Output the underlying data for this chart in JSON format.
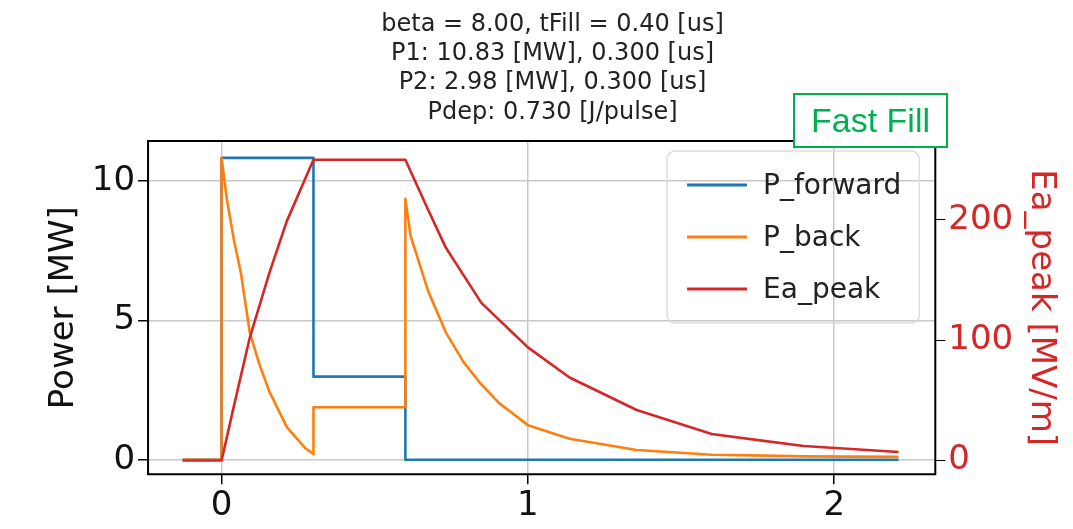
{
  "chart_data": {
    "type": "line",
    "title": "beta = 8.00, tFill = 0.40 [us]\nP1: 10.83 [MW], 0.300 [us]\nP2: 2.98 [MW], 0.300 [us]\nPdep: 0.730 [J/pulse]",
    "ylabel": "Power [MW]",
    "y2label": "Ea_peak [MV/m]",
    "annotations": [
      "Fast Fill"
    ],
    "xlim": [
      -0.24,
      2.33
    ],
    "xticks": [
      0,
      1,
      2
    ],
    "ylim": [
      -0.52,
      11.43
    ],
    "yticks": [
      0,
      5,
      10
    ],
    "y2lim": [
      -11.4,
      265.5
    ],
    "y2ticks": [
      0,
      100,
      200
    ],
    "grid": true,
    "legend": "top right",
    "marker": "none",
    "line_style": "solid",
    "series": [
      {
        "name": "P_forward",
        "color": "#1f77b4",
        "x": [
          -0.127,
          0,
          0,
          0.3,
          0.3,
          0.6,
          0.6,
          2.21
        ],
        "values": [
          0,
          0,
          10.83,
          10.83,
          2.98,
          2.98,
          0,
          0
        ]
      },
      {
        "name": "P_back",
        "color": "#ff7f0e",
        "x": [
          -0.127,
          0,
          0,
          0.017,
          0.04,
          0.063,
          0.092,
          0.121,
          0.156,
          0.213,
          0.271,
          0.3,
          0.3,
          0.6,
          0.6,
          0.617,
          0.675,
          0.732,
          0.79,
          0.848,
          0.905,
          1.0,
          1.136,
          1.355,
          1.6,
          1.9,
          2.21
        ],
        "values": [
          0,
          0,
          10.83,
          9.36,
          7.9,
          6.7,
          4.57,
          3.5,
          2.44,
          1.17,
          0.44,
          0.2,
          1.88,
          1.88,
          9.36,
          8.03,
          6.03,
          4.57,
          3.5,
          2.7,
          2.04,
          1.24,
          0.75,
          0.35,
          0.18,
          0.12,
          0.1
        ]
      },
      {
        "name": "Ea_peak",
        "color": "#d62728",
        "axis": "y2",
        "x": [
          -0.127,
          0,
          0.04,
          0.092,
          0.156,
          0.213,
          0.3,
          0.6,
          0.675,
          0.732,
          0.848,
          1.0,
          1.136,
          1.355,
          1.6,
          1.9,
          2.21
        ],
        "values": [
          0,
          0,
          45,
          102,
          156,
          199,
          250,
          250,
          208,
          177,
          131,
          94,
          69,
          42,
          22,
          12,
          7
        ]
      }
    ]
  }
}
